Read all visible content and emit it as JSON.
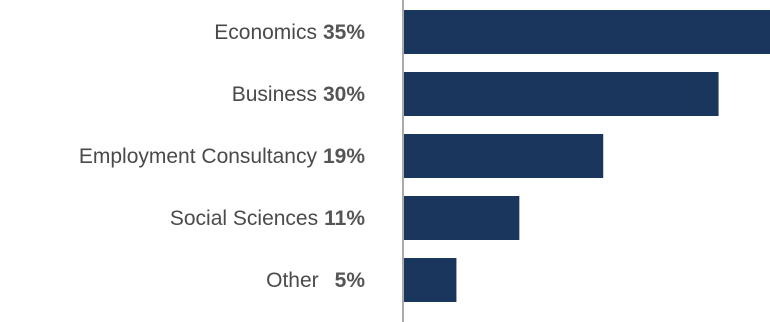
{
  "chart_data": {
    "type": "bar",
    "orientation": "horizontal",
    "categories": [
      "Economics",
      "Business",
      "Employment Consultancy",
      "Social Sciences",
      "Other"
    ],
    "values": [
      35,
      30,
      19,
      11,
      5
    ],
    "value_labels": [
      "35%",
      "30%",
      "19%",
      "11%",
      "5%"
    ],
    "xlim": [
      0,
      35
    ],
    "grid": false,
    "bar_color": "#1b365d",
    "axis_color": "#555555"
  }
}
